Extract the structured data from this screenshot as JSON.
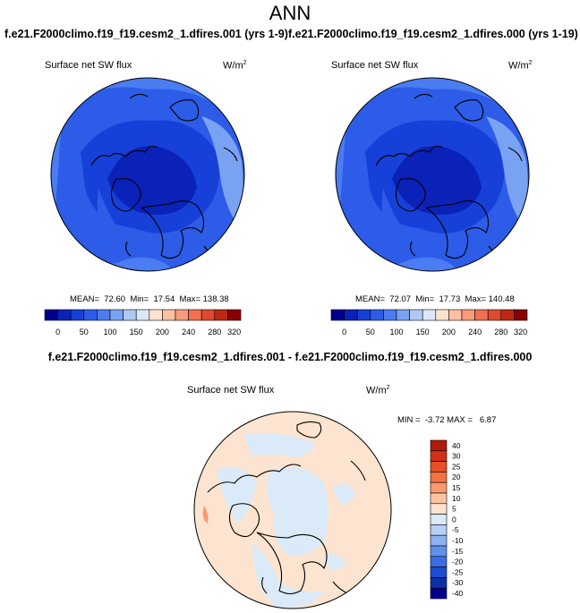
{
  "title": "ANN",
  "panels": [
    {
      "case_title": "f.e21.F2000climo.f19_f19.cesm2_1.dfires.001 (yrs 1-9)",
      "variable": "Surface net SW flux",
      "units": "W/m",
      "units_exp": "2",
      "stats": "MEAN=  72.60  Min=  17.54  Max= 138.38"
    },
    {
      "case_title": "f.e21.F2000climo.f19_f19.cesm2_1.dfires.000 (yrs 1-19)",
      "variable": "Surface net SW flux",
      "units": "W/m",
      "units_exp": "2",
      "stats": "MEAN=  72.07  Min=  17.73  Max= 140.48"
    }
  ],
  "colorbar_main": {
    "colors": [
      "#00008b",
      "#0a22b8",
      "#1740d8",
      "#2c5ce8",
      "#4a7cf2",
      "#7aa2f2",
      "#aecaf2",
      "#dbe8fa",
      "#fde3cf",
      "#fcc0a0",
      "#f89b7a",
      "#f07050",
      "#e04a30",
      "#c02814",
      "#8b0000"
    ],
    "tick_labels": [
      "0",
      "50",
      "100",
      "150",
      "200",
      "240",
      "280",
      "320"
    ]
  },
  "difference": {
    "title": "f.e21.F2000climo.f19_f19.cesm2_1.dfires.001 - f.e21.F2000climo.f19_f19.cesm2_1.dfires.000",
    "variable": "Surface net SW flux",
    "units": "W/m",
    "units_exp": "2",
    "stats": "MIN =  -3.72 MAX =   6.87",
    "colorbar": {
      "colors": [
        "#b01a0a",
        "#d0301a",
        "#e84d25",
        "#f47240",
        "#f89a6e",
        "#fbc4a0",
        "#fde4d0",
        "#daeaf8",
        "#b5d0f4",
        "#8cb2f0",
        "#6090ec",
        "#3a6de4",
        "#1f4cd2",
        "#0e2ea8",
        "#00008b"
      ],
      "tick_labels": [
        "40",
        "30",
        "25",
        "20",
        "15",
        "10",
        "5",
        "0",
        "-5",
        "-10",
        "-15",
        "-20",
        "-25",
        "-30",
        "-40"
      ]
    }
  }
}
